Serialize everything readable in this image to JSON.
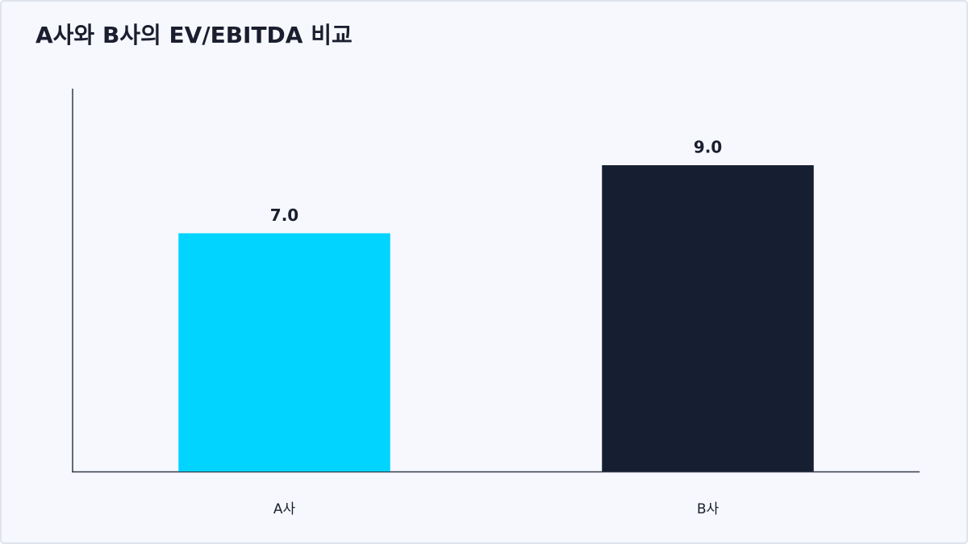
{
  "chart_data": {
    "type": "bar",
    "title": "A사와 B사의 EV/EBITDA 비교",
    "categories": [
      "A사",
      "B사"
    ],
    "values": [
      7.0,
      9.0
    ],
    "value_labels": [
      "7.0",
      "9.0"
    ],
    "colors": [
      "#00d4ff",
      "#161e31"
    ],
    "ylim": [
      0,
      11.25
    ]
  }
}
